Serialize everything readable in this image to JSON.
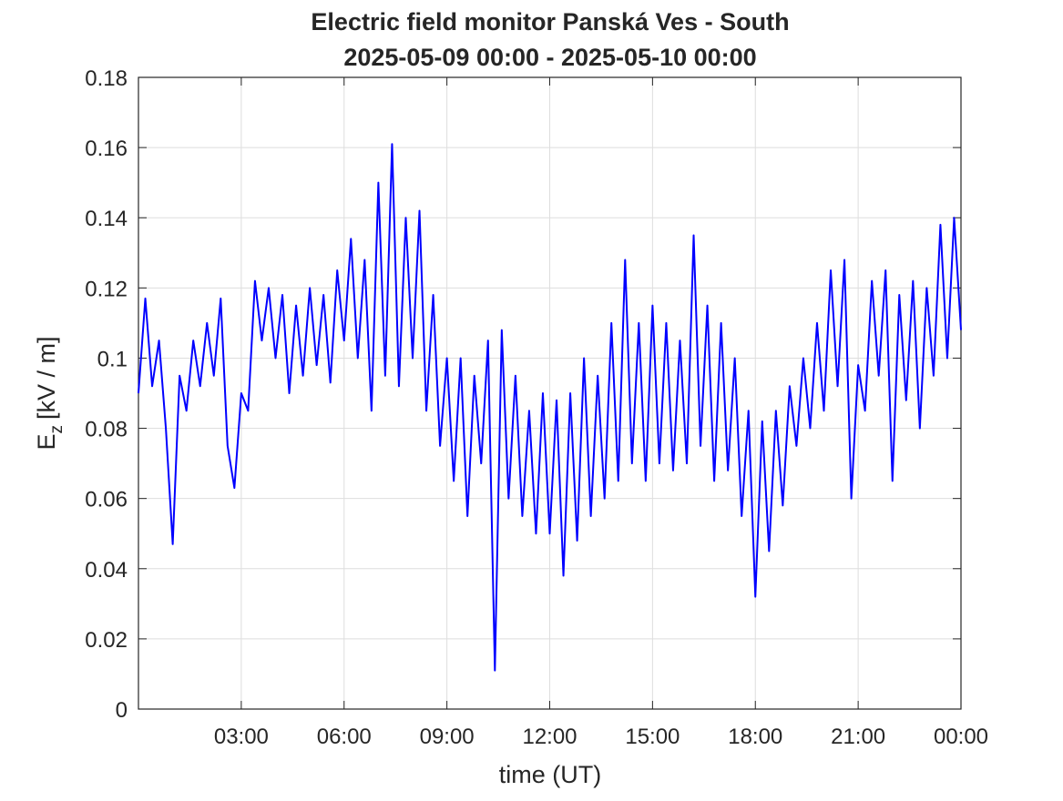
{
  "chart_data": {
    "type": "line",
    "title": "Electric field monitor Panská Ves - South",
    "subtitle": "2025-05-09 00:00 - 2025-05-10 00:00",
    "x_label": "time (UT)",
    "y_label": {
      "symbol": "E",
      "subscript": "z",
      "unit": "[kV / m]"
    },
    "xlim": [
      0,
      24
    ],
    "xticks": [
      {
        "value": 3,
        "label": "03:00"
      },
      {
        "value": 6,
        "label": "06:00"
      },
      {
        "value": 9,
        "label": "09:00"
      },
      {
        "value": 12,
        "label": "12:00"
      },
      {
        "value": 15,
        "label": "15:00"
      },
      {
        "value": 18,
        "label": "18:00"
      },
      {
        "value": 21,
        "label": "21:00"
      },
      {
        "value": 24,
        "label": "00:00"
      }
    ],
    "ylim": [
      0,
      0.18
    ],
    "yticks": [
      0,
      0.02,
      0.04,
      0.06,
      0.08,
      0.1,
      0.12,
      0.14,
      0.16,
      0.18
    ],
    "grid": true,
    "x": [
      0,
      0.2,
      0.4,
      0.6,
      0.8,
      1,
      1.2,
      1.4,
      1.6,
      1.8,
      2,
      2.2,
      2.4,
      2.6,
      2.8,
      3,
      3.2,
      3.4,
      3.6,
      3.8,
      4,
      4.2,
      4.4,
      4.6,
      4.8,
      5,
      5.2,
      5.4,
      5.6,
      5.8,
      6,
      6.2,
      6.4,
      6.6,
      6.8,
      7,
      7.2,
      7.4,
      7.6,
      7.8,
      8,
      8.2,
      8.4,
      8.6,
      8.8,
      9,
      9.2,
      9.4,
      9.6,
      9.8,
      10,
      10.2,
      10.4,
      10.6,
      10.8,
      11,
      11.2,
      11.4,
      11.6,
      11.8,
      12,
      12.2,
      12.4,
      12.6,
      12.8,
      13,
      13.2,
      13.4,
      13.6,
      13.8,
      14,
      14.2,
      14.4,
      14.6,
      14.8,
      15,
      15.2,
      15.4,
      15.6,
      15.8,
      16,
      16.2,
      16.4,
      16.6,
      16.8,
      17,
      17.2,
      17.4,
      17.6,
      17.8,
      18,
      18.2,
      18.4,
      18.6,
      18.8,
      19,
      19.2,
      19.4,
      19.6,
      19.8,
      20,
      20.2,
      20.4,
      20.6,
      20.8,
      21,
      21.2,
      21.4,
      21.6,
      21.8,
      22,
      22.2,
      22.4,
      22.6,
      22.8,
      23,
      23.2,
      23.4,
      23.6,
      23.8,
      24
    ],
    "series": [
      {
        "color": "#0000ff",
        "values": [
          0.09,
          0.117,
          0.092,
          0.105,
          0.08,
          0.047,
          0.095,
          0.085,
          0.105,
          0.092,
          0.11,
          0.095,
          0.117,
          0.075,
          0.063,
          0.09,
          0.085,
          0.122,
          0.105,
          0.12,
          0.1,
          0.118,
          0.09,
          0.115,
          0.095,
          0.12,
          0.098,
          0.118,
          0.093,
          0.125,
          0.105,
          0.134,
          0.1,
          0.128,
          0.085,
          0.15,
          0.095,
          0.161,
          0.092,
          0.14,
          0.1,
          0.142,
          0.085,
          0.118,
          0.075,
          0.1,
          0.065,
          0.1,
          0.055,
          0.095,
          0.07,
          0.105,
          0.011,
          0.108,
          0.06,
          0.095,
          0.055,
          0.085,
          0.05,
          0.09,
          0.05,
          0.088,
          0.038,
          0.09,
          0.048,
          0.1,
          0.055,
          0.095,
          0.06,
          0.11,
          0.065,
          0.128,
          0.07,
          0.11,
          0.065,
          0.115,
          0.07,
          0.11,
          0.068,
          0.105,
          0.07,
          0.135,
          0.075,
          0.115,
          0.065,
          0.11,
          0.068,
          0.1,
          0.055,
          0.085,
          0.032,
          0.082,
          0.045,
          0.085,
          0.058,
          0.092,
          0.075,
          0.1,
          0.08,
          0.11,
          0.085,
          0.125,
          0.092,
          0.128,
          0.06,
          0.098,
          0.085,
          0.122,
          0.095,
          0.125,
          0.065,
          0.118,
          0.088,
          0.122,
          0.08,
          0.12,
          0.095,
          0.138,
          0.1,
          0.14,
          0.108
        ]
      }
    ]
  }
}
